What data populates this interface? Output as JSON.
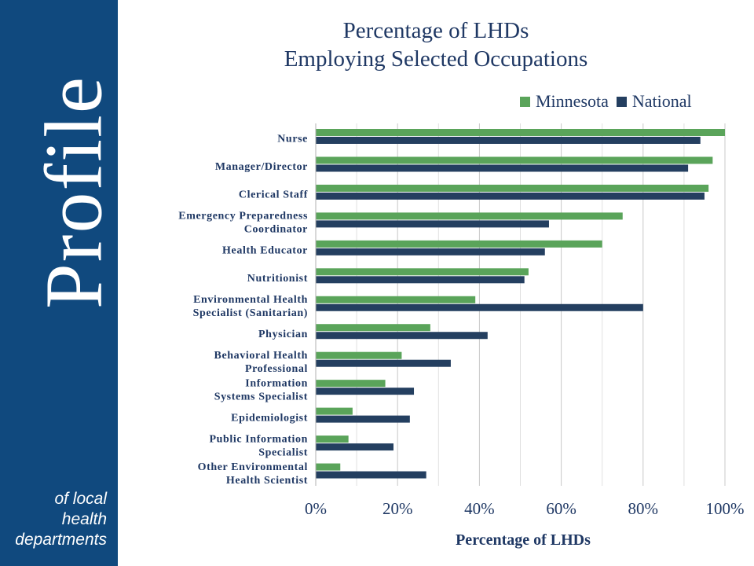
{
  "sidebar": {
    "word": "Profile",
    "tagline": [
      "of local",
      "health",
      "departments"
    ]
  },
  "colors": {
    "minnesota": "#5aa45a",
    "national": "#243f60",
    "sidebar": "#10497e",
    "text": "#1f3864"
  },
  "chart_data": {
    "type": "bar",
    "orientation": "horizontal",
    "title": [
      "Percentage of LHDs",
      "Employing Selected Occupations"
    ],
    "xlabel": "Percentage of LHDs",
    "ylabel": "",
    "xlim": [
      0,
      100
    ],
    "xticks": [
      "0%",
      "20%",
      "40%",
      "60%",
      "80%",
      "100%"
    ],
    "legend_position": "top-right",
    "grid": true,
    "categories": [
      [
        "Nurse"
      ],
      [
        "Manager/Director"
      ],
      [
        "Clerical Staff"
      ],
      [
        "Emergency Preparedness",
        "Coordinator"
      ],
      [
        "Health Educator"
      ],
      [
        "Nutritionist"
      ],
      [
        "Environmental Health",
        "Specialist (Sanitarian)"
      ],
      [
        "Physician"
      ],
      [
        "Behavioral Health",
        "Professional"
      ],
      [
        "Information",
        "Systems Specialist"
      ],
      [
        "Epidemiologist"
      ],
      [
        "Public Information",
        "Specialist"
      ],
      [
        "Other Environmental",
        "Health Scientist"
      ]
    ],
    "series": [
      {
        "name": "Minnesota",
        "values": [
          100,
          97,
          96,
          75,
          70,
          52,
          39,
          28,
          21,
          17,
          9,
          8,
          6
        ]
      },
      {
        "name": "National",
        "values": [
          94,
          91,
          95,
          57,
          56,
          51,
          80,
          42,
          33,
          24,
          23,
          19,
          27
        ]
      }
    ]
  }
}
